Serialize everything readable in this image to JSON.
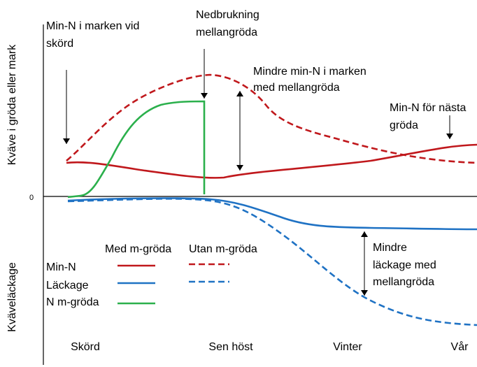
{
  "axes": {
    "y_upper_label": "Kväve i gröda eller mark",
    "y_lower_label": "Kväveläckage",
    "zero_label": "0",
    "x_labels": [
      "Skörd",
      "Sen höst",
      "Vinter",
      "Vår"
    ]
  },
  "annotations": [
    {
      "lines": [
        "Min-N i marken vid",
        "skörd"
      ]
    },
    {
      "lines": [
        "Nedbrukning",
        "mellangröda"
      ]
    },
    {
      "lines": [
        "Mindre min-N i marken",
        "med mellangröda"
      ]
    },
    {
      "lines": [
        "Min-N för nästa",
        "gröda"
      ]
    },
    {
      "lines": [
        "Mindre",
        "läckage med",
        "mellangröda"
      ]
    }
  ],
  "legend": {
    "columns": [
      "Med m-gröda",
      "Utan m-gröda"
    ],
    "rows": [
      "Min-N",
      "Läckage",
      "N m-gröda"
    ]
  }
}
